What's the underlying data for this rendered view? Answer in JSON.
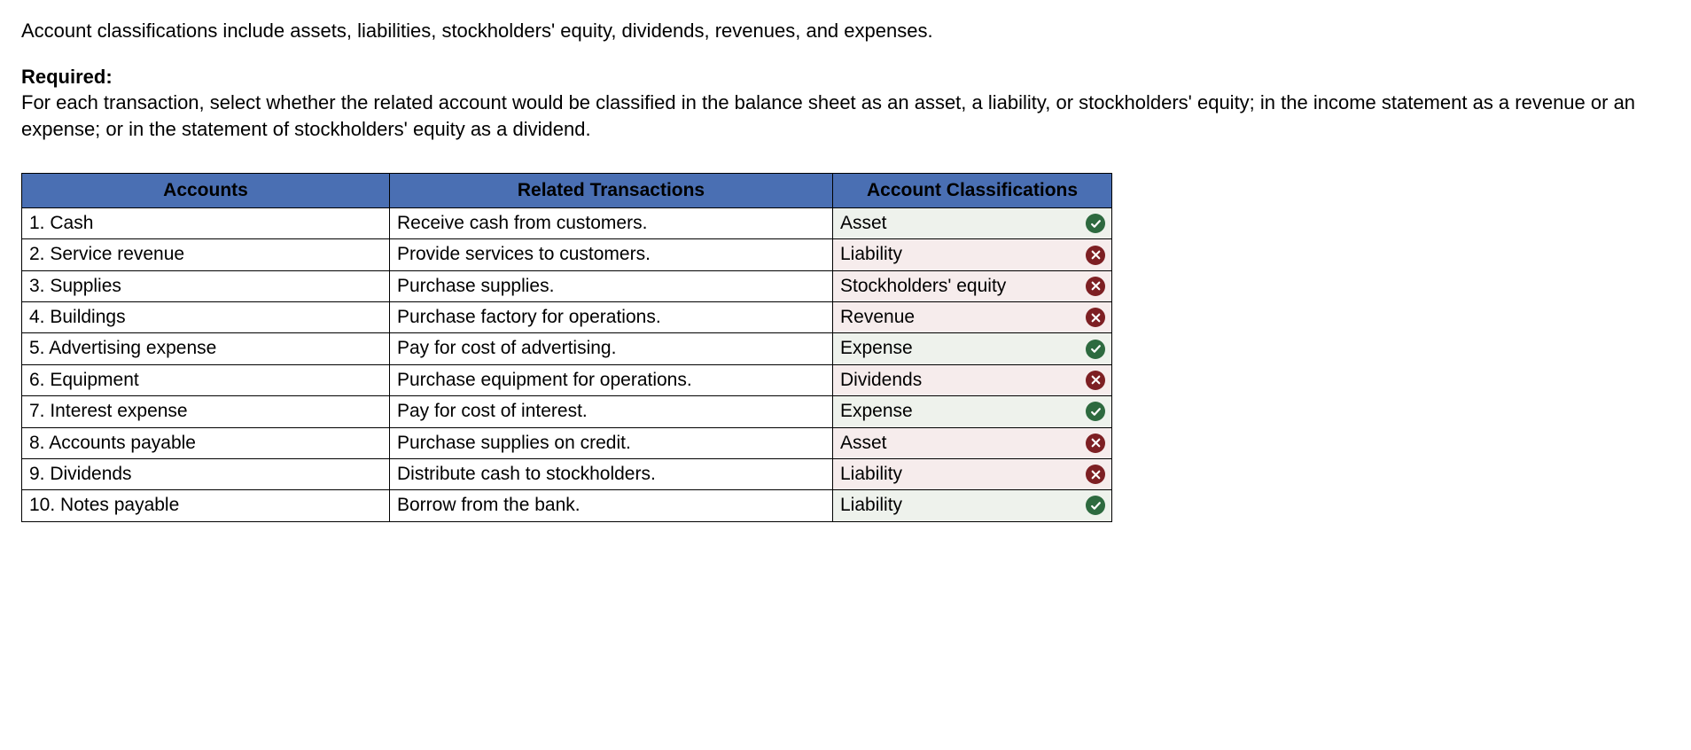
{
  "intro_text": "Account classifications include assets, liabilities, stockholders' equity, dividends, revenues, and expenses.",
  "required_label": "Required:",
  "required_text": "For each transaction, select whether the related account would be classified in the balance sheet as an asset, a liability, or stockholders' equity; in the income statement as a revenue or an expense; or in the statement of stockholders' equity as a dividend.",
  "table": {
    "header_bg": "#4a6fb3",
    "border_color": "#000000",
    "correct_bg": "#eef2ec",
    "incorrect_bg": "#f6ecec",
    "icon_correct_color": "#2d6a3f",
    "icon_incorrect_color": "#7d1f23",
    "columns": [
      "Accounts",
      "Related Transactions",
      "Account Classifications"
    ],
    "rows": [
      {
        "account": "1. Cash",
        "transaction": "Receive cash from customers.",
        "classification": "Asset",
        "correct": true
      },
      {
        "account": "2. Service revenue",
        "transaction": "Provide services to customers.",
        "classification": "Liability",
        "correct": false
      },
      {
        "account": "3. Supplies",
        "transaction": "Purchase supplies.",
        "classification": "Stockholders' equity",
        "correct": false
      },
      {
        "account": "4. Buildings",
        "transaction": "Purchase factory for operations.",
        "classification": "Revenue",
        "correct": false
      },
      {
        "account": "5. Advertising expense",
        "transaction": "Pay for cost of advertising.",
        "classification": "Expense",
        "correct": true
      },
      {
        "account": "6. Equipment",
        "transaction": "Purchase equipment for operations.",
        "classification": "Dividends",
        "correct": false
      },
      {
        "account": "7. Interest expense",
        "transaction": "Pay for cost of interest.",
        "classification": "Expense",
        "correct": true
      },
      {
        "account": "8. Accounts payable",
        "transaction": "Purchase supplies on credit.",
        "classification": "Asset",
        "correct": false
      },
      {
        "account": "9. Dividends",
        "transaction": "Distribute cash to stockholders.",
        "classification": "Liability",
        "correct": false
      },
      {
        "account": "10. Notes payable",
        "transaction": "Borrow from the bank.",
        "classification": "Liability",
        "correct": true
      }
    ]
  }
}
